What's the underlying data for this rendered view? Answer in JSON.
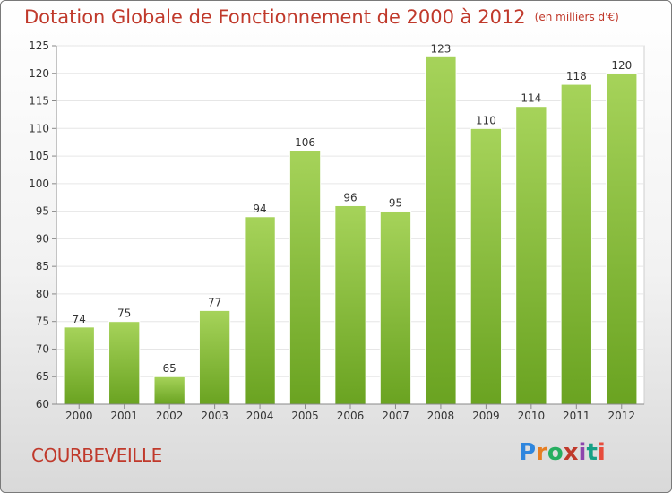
{
  "title": "Dotation Globale de Fonctionnement de 2000 à 2012",
  "unit": "(en milliers d'€)",
  "commune": "COURBEVEILLE",
  "logo": {
    "letters": [
      "P",
      "r",
      "o",
      "x",
      "i",
      "t",
      "i"
    ],
    "colors": [
      "#2e86de",
      "#e67e22",
      "#27ae60",
      "#c0392b",
      "#8e44ad",
      "#16a085",
      "#e74c3c"
    ]
  },
  "colors": {
    "title": "#c0392b",
    "bar_top": "#a6d35a",
    "bar_bottom": "#6aa321",
    "grid": "#e6e6e6"
  },
  "chart_data": {
    "type": "bar",
    "categories": [
      "2000",
      "2001",
      "2002",
      "2003",
      "2004",
      "2005",
      "2006",
      "2007",
      "2008",
      "2009",
      "2010",
      "2011",
      "2012"
    ],
    "values": [
      74,
      75,
      65,
      77,
      94,
      106,
      96,
      95,
      123,
      110,
      114,
      118,
      120
    ],
    "ylim": [
      60,
      125
    ],
    "yticks": [
      60,
      65,
      70,
      75,
      80,
      85,
      90,
      95,
      100,
      105,
      110,
      115,
      120,
      125
    ],
    "grid": true,
    "data_labels": true
  }
}
